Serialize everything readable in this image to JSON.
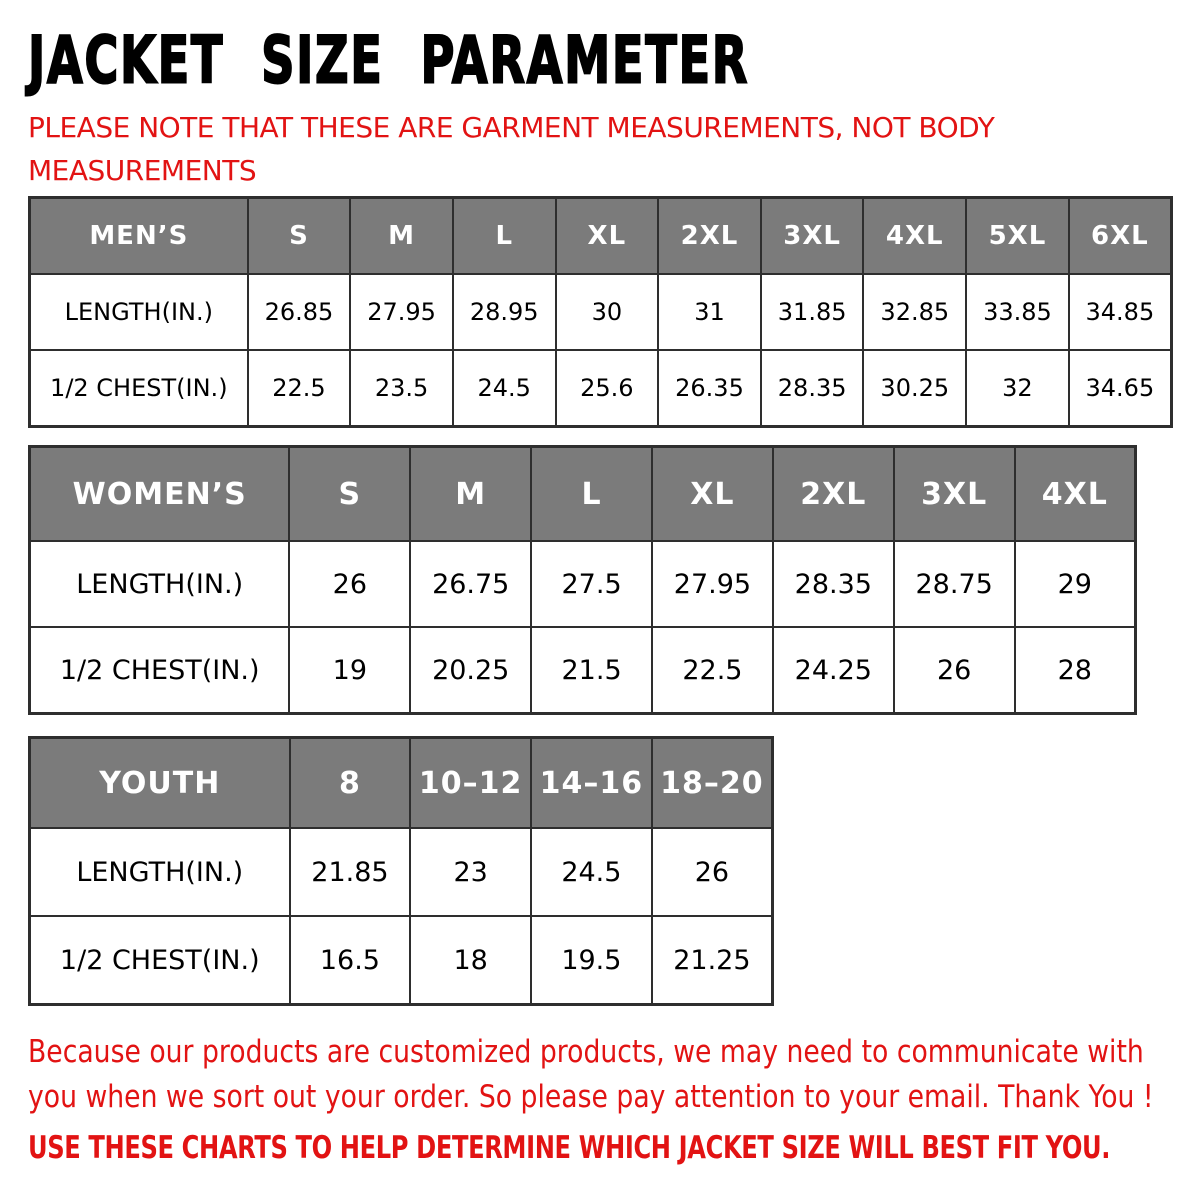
{
  "page": {
    "title": "JACKET SIZE PARAMETER",
    "note": "PLEASE NOTE THAT THESE ARE GARMENT MEASUREMENTS, NOT BODY MEASUREMENTS",
    "footer_paragraph": "Because our products are customized products, we may need to communicate with you when we sort out your order. So please pay attention to your email. Thank You !",
    "footer_line": "USE THESE CHARTS TO HELP DETERMINE WHICH JACKET SIZE WILL BEST FIT YOU."
  },
  "colors": {
    "accent_red": "#e21313",
    "header_gray": "#7b7b7b",
    "border_dark": "#2e2e2e",
    "text_black": "#000000"
  },
  "tables": [
    {
      "id": "mens",
      "header_label": "MEN’S",
      "sizes": [
        "S",
        "M",
        "L",
        "XL",
        "2XL",
        "3XL",
        "4XL",
        "5XL",
        "6XL"
      ],
      "rows": [
        {
          "label": "LENGTH(IN.)",
          "values": [
            "26.85",
            "27.95",
            "28.95",
            "30",
            "31",
            "31.85",
            "32.85",
            "33.85",
            "34.85"
          ]
        },
        {
          "label": "1/2 CHEST(IN.)",
          "values": [
            "22.5",
            "23.5",
            "24.5",
            "25.6",
            "26.35",
            "28.35",
            "30.25",
            "32",
            "34.65"
          ]
        }
      ]
    },
    {
      "id": "womens",
      "header_label": "WOMEN’S",
      "sizes": [
        "S",
        "M",
        "L",
        "XL",
        "2XL",
        "3XL",
        "4XL"
      ],
      "rows": [
        {
          "label": "LENGTH(IN.)",
          "values": [
            "26",
            "26.75",
            "27.5",
            "27.95",
            "28.35",
            "28.75",
            "29"
          ]
        },
        {
          "label": "1/2 CHEST(IN.)",
          "values": [
            "19",
            "20.25",
            "21.5",
            "22.5",
            "24.25",
            "26",
            "28"
          ]
        }
      ]
    },
    {
      "id": "youth",
      "header_label": "YOUTH",
      "sizes": [
        "8",
        "10–12",
        "14–16",
        "18–20"
      ],
      "rows": [
        {
          "label": "LENGTH(IN.)",
          "values": [
            "21.85",
            "23",
            "24.5",
            "26"
          ]
        },
        {
          "label": "1/2 CHEST(IN.)",
          "values": [
            "16.5",
            "18",
            "19.5",
            "21.25"
          ]
        }
      ]
    }
  ]
}
